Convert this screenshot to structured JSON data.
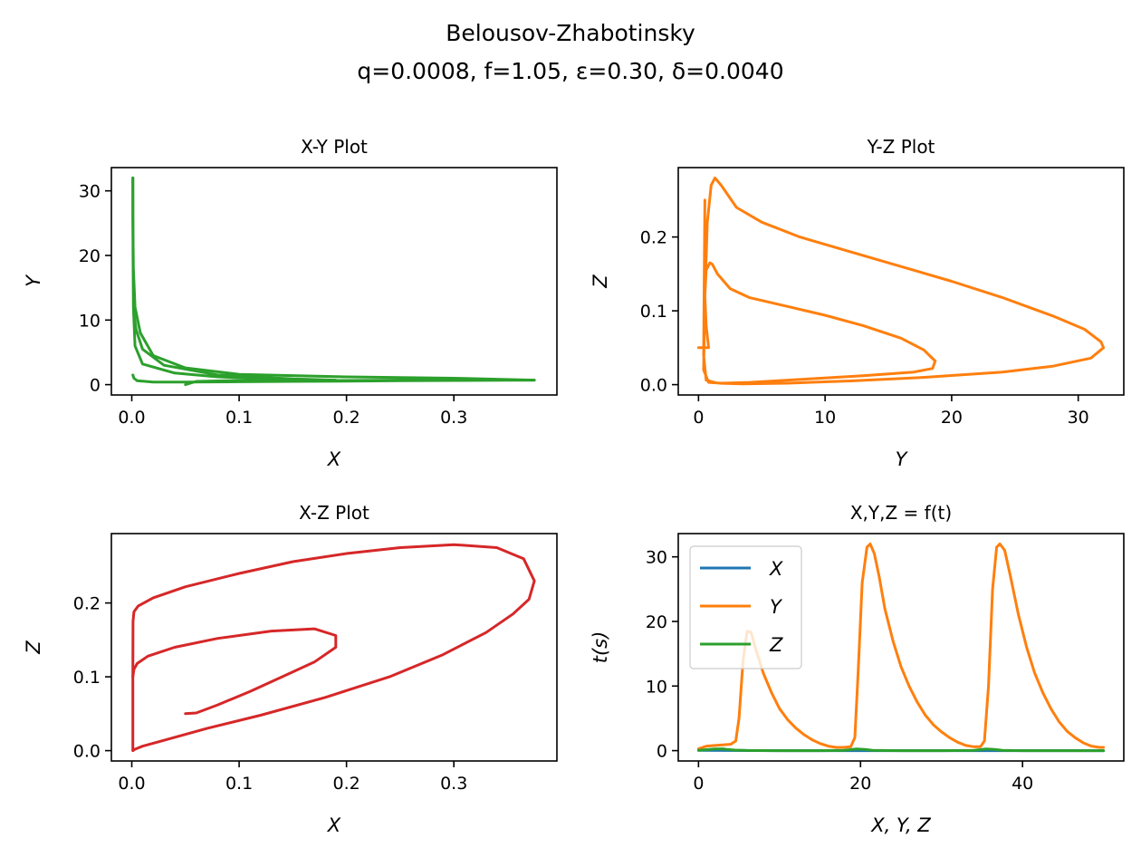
{
  "figure": {
    "title_line1": "Belousov-Zhabotinsky",
    "title_line2": "q=0.0008, f=1.05, ε=0.30, δ=0.0040"
  },
  "colors": {
    "X": "#1f77b4",
    "Y": "#ff7f0e",
    "Z": "#2ca02c",
    "XZ": "#d62728"
  },
  "chart_data": [
    {
      "type": "line",
      "title": "X-Y Plot",
      "xlabel": "X",
      "ylabel": "Y",
      "xlim": [
        -0.019,
        0.396
      ],
      "ylim": [
        -1.6,
        33.6
      ],
      "xticks": [
        0.0,
        0.1,
        0.2,
        0.3
      ],
      "xtick_labels": [
        "0.0",
        "0.1",
        "0.2",
        "0.3"
      ],
      "yticks": [
        0,
        10,
        20,
        30
      ],
      "ytick_labels": [
        "0",
        "10",
        "20",
        "30"
      ],
      "color": "#2ca02c",
      "series": [
        {
          "x": [
            0.05,
            0.06,
            0.09,
            0.15,
            0.2,
            0.25,
            0.3,
            0.35,
            0.375,
            0.3,
            0.2,
            0.1,
            0.05,
            0.02,
            0.008,
            0.003,
            0.0015,
            0.001,
            0.001
          ],
          "y": [
            0.0,
            0.5,
            0.6,
            0.6,
            0.65,
            0.7,
            0.7,
            0.7,
            0.7,
            1.0,
            1.2,
            1.6,
            2.6,
            4.5,
            8.0,
            12.0,
            18.0,
            26.0,
            32.0
          ]
        },
        {
          "x": [
            0.001,
            0.0012,
            0.0015,
            0.003,
            0.01,
            0.04,
            0.08,
            0.12,
            0.16,
            0.19,
            0.15,
            0.08,
            0.03,
            0.01,
            0.004,
            0.002
          ],
          "y": [
            32.0,
            20.0,
            12.0,
            6.0,
            3.2,
            1.8,
            1.2,
            0.9,
            0.75,
            0.7,
            0.9,
            1.5,
            3.0,
            5.5,
            8.5,
            11.0
          ]
        },
        {
          "x": [
            0.001,
            0.002,
            0.005,
            0.02,
            0.05,
            0.1,
            0.15,
            0.2,
            0.25,
            0.3,
            0.35,
            0.375
          ],
          "y": [
            1.5,
            1.0,
            0.6,
            0.4,
            0.4,
            0.45,
            0.5,
            0.55,
            0.6,
            0.65,
            0.7,
            0.7
          ]
        }
      ]
    },
    {
      "type": "line",
      "title": "Y-Z Plot",
      "xlabel": "Y",
      "ylabel": "Z",
      "xlim": [
        -1.6,
        33.6
      ],
      "ylim": [
        -0.014,
        0.294
      ],
      "xticks": [
        0,
        10,
        20,
        30
      ],
      "xtick_labels": [
        "0",
        "10",
        "20",
        "30"
      ],
      "yticks": [
        0.0,
        0.1,
        0.2
      ],
      "ytick_labels": [
        "0.0",
        "0.1",
        "0.2"
      ],
      "color": "#ff7f0e",
      "series": [
        {
          "x": [
            0.0,
            0.6,
            0.8,
            0.6,
            0.5,
            0.6,
            0.9,
            1.1,
            1.5,
            2.5,
            4.0,
            7.0,
            10.0,
            13.0,
            16.0,
            17.8,
            18.7,
            18.5,
            17.0,
            13.0,
            8.0,
            4.0,
            1.8,
            0.8,
            0.4,
            0.5,
            0.7,
            1.0,
            1.3,
            1.8,
            3.0,
            5.0,
            8.0,
            12.0,
            16.0,
            20.0,
            24.0,
            28.0,
            30.5,
            31.8,
            32.0,
            31.0,
            28.0,
            24.0,
            18.0,
            12.0,
            7.0,
            3.5,
            1.5,
            0.6,
            0.4,
            0.45,
            0.5
          ],
          "y": [
            0.05,
            0.05,
            0.05,
            0.08,
            0.12,
            0.155,
            0.165,
            0.163,
            0.15,
            0.13,
            0.118,
            0.106,
            0.094,
            0.08,
            0.063,
            0.047,
            0.032,
            0.022,
            0.017,
            0.012,
            0.007,
            0.003,
            0.002,
            0.003,
            0.02,
            0.12,
            0.22,
            0.27,
            0.28,
            0.27,
            0.24,
            0.22,
            0.2,
            0.18,
            0.16,
            0.14,
            0.118,
            0.093,
            0.075,
            0.058,
            0.05,
            0.036,
            0.025,
            0.017,
            0.01,
            0.005,
            0.002,
            0.001,
            0.002,
            0.006,
            0.04,
            0.15,
            0.25
          ]
        }
      ]
    },
    {
      "type": "line",
      "title": "X-Z Plot",
      "xlabel": "X",
      "ylabel": "Z",
      "xlim": [
        -0.019,
        0.396
      ],
      "ylim": [
        -0.014,
        0.294
      ],
      "xticks": [
        0.0,
        0.1,
        0.2,
        0.3
      ],
      "xtick_labels": [
        "0.0",
        "0.1",
        "0.2",
        "0.3"
      ],
      "yticks": [
        0.0,
        0.1,
        0.2
      ],
      "ytick_labels": [
        "0.0",
        "0.1",
        "0.2"
      ],
      "color": "#d62728",
      "series": [
        {
          "x": [
            0.05,
            0.06,
            0.08,
            0.11,
            0.14,
            0.17,
            0.19,
            0.19,
            0.17,
            0.13,
            0.08,
            0.04,
            0.015,
            0.005,
            0.002,
            0.001
          ],
          "y": [
            0.05,
            0.051,
            0.062,
            0.08,
            0.1,
            0.12,
            0.14,
            0.156,
            0.165,
            0.162,
            0.152,
            0.14,
            0.128,
            0.118,
            0.11,
            0.1
          ]
        },
        {
          "x": [
            0.001,
            0.001,
            0.0012,
            0.002,
            0.006,
            0.02,
            0.05,
            0.1,
            0.15,
            0.2,
            0.25,
            0.3,
            0.34,
            0.365,
            0.375,
            0.37,
            0.355,
            0.33,
            0.29,
            0.24,
            0.18,
            0.12,
            0.07,
            0.03,
            0.01,
            0.003,
            0.001
          ],
          "y": [
            0.0,
            0.1,
            0.175,
            0.188,
            0.196,
            0.207,
            0.222,
            0.24,
            0.256,
            0.267,
            0.275,
            0.279,
            0.275,
            0.26,
            0.23,
            0.205,
            0.185,
            0.16,
            0.13,
            0.1,
            0.072,
            0.048,
            0.03,
            0.014,
            0.006,
            0.002,
            0.0
          ]
        }
      ]
    },
    {
      "type": "line",
      "title": "X,Y,Z = f(t)",
      "xlabel": "X, Y, Z",
      "ylabel": "t(s)",
      "xlim": [
        -2.5,
        52.5
      ],
      "ylim": [
        -1.6,
        33.6
      ],
      "xticks": [
        0,
        20,
        40
      ],
      "xtick_labels": [
        "0",
        "20",
        "40"
      ],
      "yticks": [
        0,
        10,
        20,
        30
      ],
      "ytick_labels": [
        "0",
        "10",
        "20",
        "30"
      ],
      "legend_position": "upper-left",
      "series": [
        {
          "name": "X",
          "color": "#1f77b4",
          "x": [
            0,
            10,
            20,
            30,
            40,
            50
          ],
          "y": [
            0.05,
            0.0,
            0.0,
            0.0,
            0.0,
            0.0
          ]
        },
        {
          "name": "Y",
          "color": "#ff7f0e",
          "x": [
            0,
            1,
            2,
            3,
            4,
            4.6,
            5.0,
            5.5,
            6.0,
            6.5,
            7.0,
            8.0,
            9.0,
            10.0,
            11.0,
            12.0,
            13.0,
            14.0,
            15.0,
            16.0,
            17.0,
            18.0,
            18.8,
            19.3,
            19.7,
            20.2,
            20.8,
            21.2,
            21.7,
            22.3,
            23.0,
            24.0,
            25.0,
            26.0,
            27.0,
            28.0,
            29.0,
            30.0,
            31.0,
            32.0,
            33.0,
            34.0,
            34.8,
            35.3,
            35.8,
            36.3,
            36.8,
            37.2,
            37.8,
            38.5,
            39.5,
            40.5,
            41.5,
            42.5,
            43.5,
            44.5,
            45.5,
            46.5,
            47.5,
            48.5,
            49.5,
            50.0
          ],
          "y": [
            0.3,
            0.7,
            0.8,
            0.9,
            1.0,
            1.5,
            5.0,
            14.0,
            18.5,
            18.3,
            16.0,
            12.0,
            9.0,
            6.5,
            4.8,
            3.5,
            2.5,
            1.7,
            1.1,
            0.7,
            0.5,
            0.5,
            0.6,
            2.0,
            12.0,
            26.0,
            31.5,
            32.0,
            30.5,
            27.0,
            22.0,
            17.0,
            13.0,
            10.0,
            7.5,
            5.5,
            4.0,
            2.9,
            2.0,
            1.3,
            0.8,
            0.6,
            0.6,
            1.5,
            10.0,
            25.0,
            31.5,
            32.0,
            31.0,
            27.0,
            21.0,
            16.0,
            12.0,
            9.0,
            6.5,
            4.5,
            3.0,
            2.0,
            1.2,
            0.7,
            0.5,
            0.5
          ]
        },
        {
          "name": "Z",
          "color": "#2ca02c",
          "x": [
            0,
            1,
            2,
            3,
            3.5,
            4.5,
            6,
            10,
            15,
            18,
            19.5,
            20.5,
            21.5,
            25,
            30,
            34,
            35.5,
            36.5,
            37.5,
            40,
            45,
            50
          ],
          "y": [
            0.05,
            0.15,
            0.25,
            0.28,
            0.2,
            0.08,
            0.02,
            0.0,
            0.0,
            0.05,
            0.25,
            0.2,
            0.05,
            0.0,
            0.0,
            0.05,
            0.27,
            0.2,
            0.04,
            0.0,
            0.0,
            0.0
          ]
        }
      ]
    }
  ]
}
